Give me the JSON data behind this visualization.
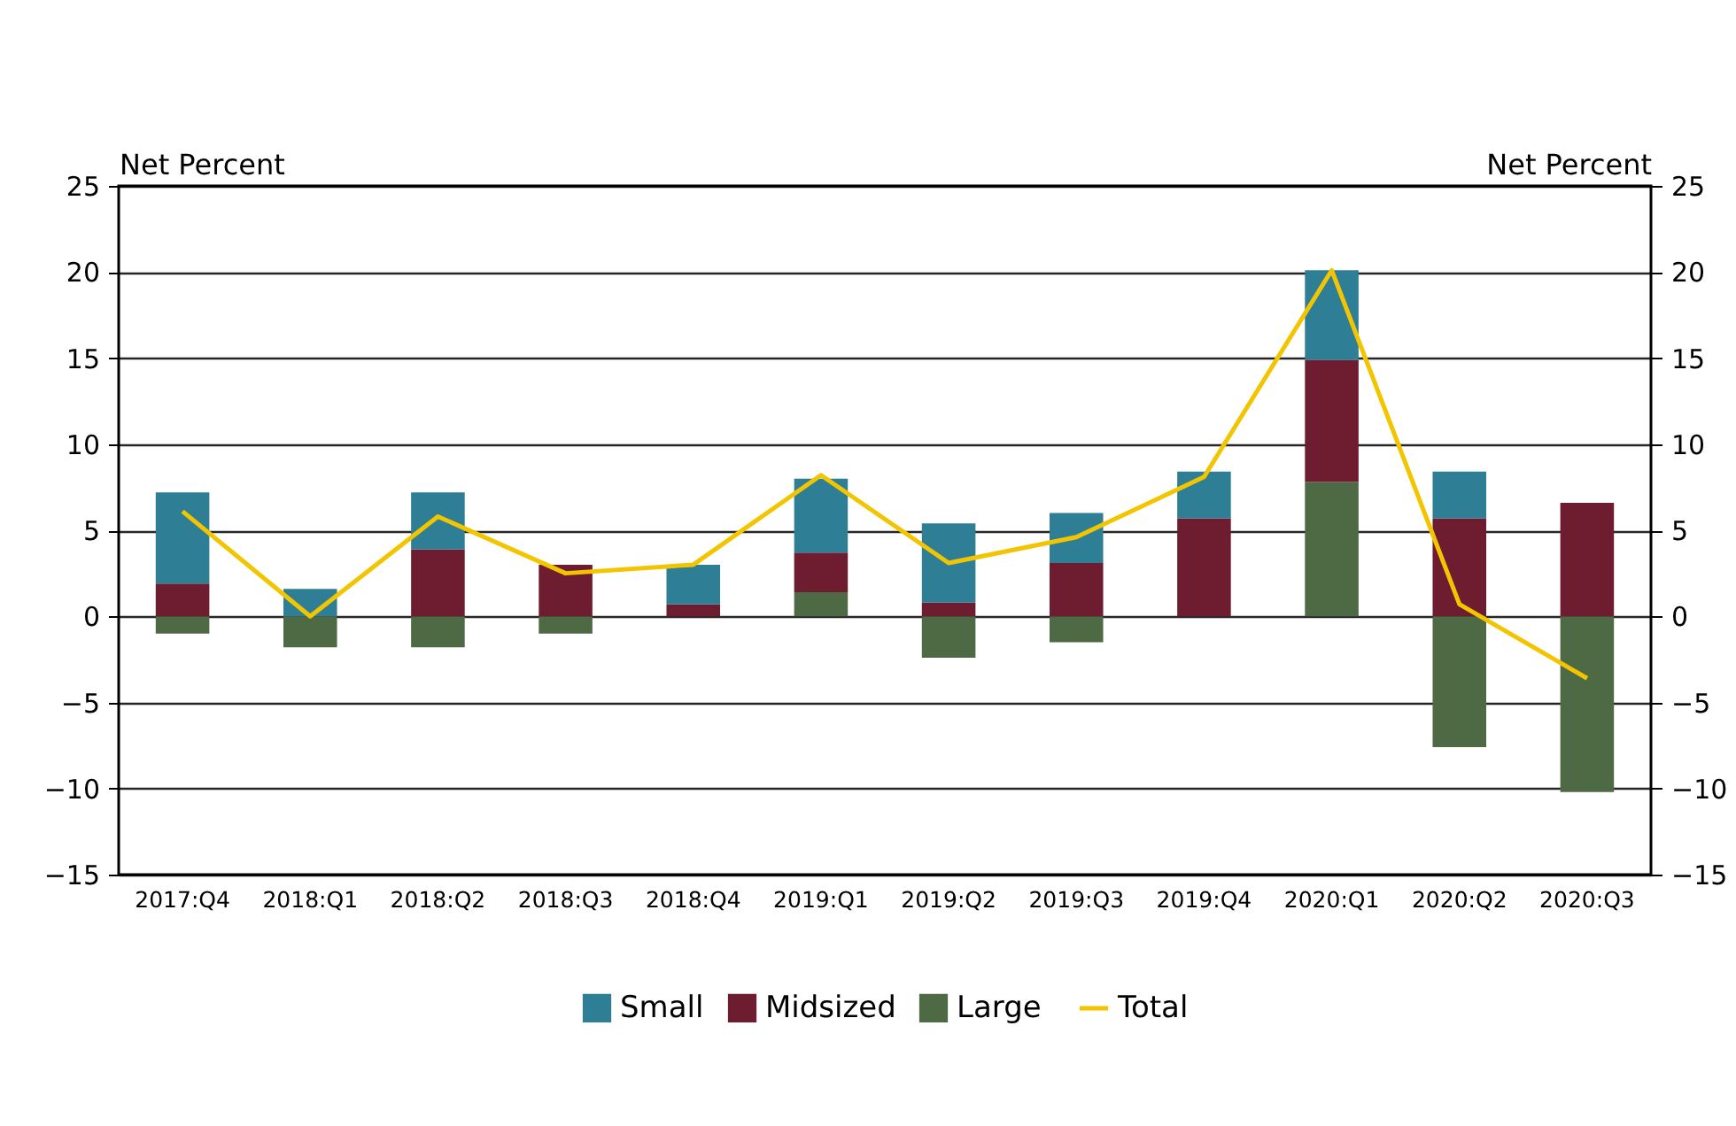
{
  "chart_data": {
    "type": "bar",
    "stacked": true,
    "ylabel": "Net Percent",
    "y2label": "Net Percent",
    "categories": [
      "2017:Q4",
      "2018:Q1",
      "2018:Q2",
      "2018:Q3",
      "2018:Q4",
      "2019:Q1",
      "2019:Q2",
      "2019:Q3",
      "2019:Q4",
      "2020:Q1",
      "2020:Q2",
      "2020:Q3"
    ],
    "series": [
      {
        "name": "Large",
        "color": "#4e6a44",
        "values": [
          -1.0,
          -1.8,
          -1.8,
          -1.0,
          0,
          1.4,
          -2.4,
          -1.5,
          0,
          7.8,
          -7.6,
          -10.2
        ]
      },
      {
        "name": "Midsized",
        "color": "#6e1c30",
        "values": [
          1.9,
          0,
          3.9,
          3.0,
          0.7,
          2.3,
          0.8,
          3.1,
          5.7,
          7.1,
          5.7,
          6.6
        ]
      },
      {
        "name": "Small",
        "color": "#2e7f96",
        "values": [
          5.3,
          1.6,
          3.3,
          0,
          2.3,
          4.3,
          4.6,
          2.9,
          2.7,
          5.2,
          2.7,
          0
        ]
      },
      {
        "name": "Total",
        "type": "line",
        "axis": "y2",
        "color": "#f2c500",
        "values": [
          6.1,
          0,
          5.8,
          2.5,
          3.0,
          8.2,
          3.1,
          4.6,
          8.1,
          20.1,
          0.7,
          -3.6
        ]
      }
    ],
    "ylim": [
      -15,
      25
    ],
    "yticks": [
      -15,
      -10,
      -5,
      0,
      5,
      10,
      15,
      20,
      25
    ],
    "y2lim": [
      -15,
      25
    ],
    "y2ticks": [
      -15,
      -10,
      -5,
      0,
      5,
      10,
      15,
      20,
      25
    ],
    "grid": "y",
    "legend": "bottom"
  }
}
